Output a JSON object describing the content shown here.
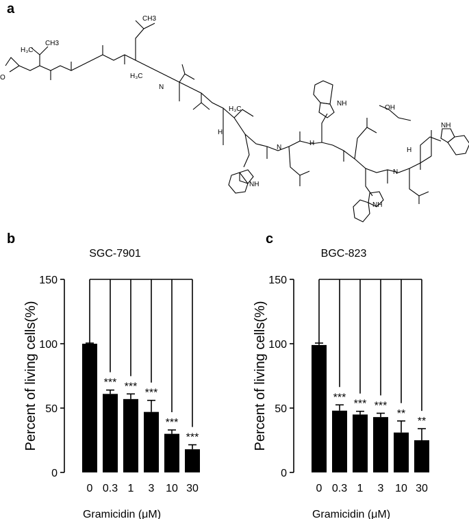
{
  "panels": {
    "a": "a",
    "b": "b",
    "c": "c"
  },
  "structure_labels": {
    "ch3_top": "CH3",
    "h3c_val1": "H₃C",
    "ch3_val1": "CH3",
    "h3c_leu": "H₃C",
    "h3c_mid": "H₃C",
    "oh": "OH",
    "nh_trp1": "NH",
    "nh_trp2": "NH",
    "nh_trp3": "NH",
    "nh_trp4": "NH",
    "h_a": "H",
    "h_b": "H",
    "h_c": "H",
    "n_a": "N",
    "n_b": "N",
    "n_c": "N",
    "o_left": "O"
  },
  "colors": {
    "bar": "#000000",
    "axis": "#000000"
  },
  "chart_data": [
    {
      "type": "bar",
      "title": "SGC-7901",
      "xlabel": "Gramicidin (μM)",
      "ylabel": "Percent of living cells(%)",
      "categories": [
        "0",
        "0.3",
        "1",
        "3",
        "10",
        "30"
      ],
      "values": [
        100,
        61,
        57,
        47,
        30,
        18
      ],
      "errors": [
        0.5,
        3,
        4,
        9,
        3,
        3.5
      ],
      "significance": [
        "",
        "***",
        "***",
        "***",
        "***",
        "***"
      ],
      "ylim": [
        0,
        150
      ],
      "yticks": [
        "0",
        "50",
        "100",
        "150"
      ],
      "bracket": true
    },
    {
      "type": "bar",
      "title": "BGC-823",
      "xlabel": "Gramicidin (μM)",
      "ylabel": "Percent of living cells(%)",
      "categories": [
        "0",
        "0.3",
        "1",
        "3",
        "10",
        "30"
      ],
      "values": [
        99,
        48,
        45,
        43,
        31,
        25
      ],
      "errors": [
        1.5,
        4.5,
        2.5,
        3,
        9,
        9
      ],
      "significance": [
        "",
        "***",
        "***",
        "***",
        "**",
        "**"
      ],
      "ylim": [
        0,
        150
      ],
      "yticks": [
        "0",
        "50",
        "100",
        "150"
      ],
      "bracket": true
    }
  ]
}
